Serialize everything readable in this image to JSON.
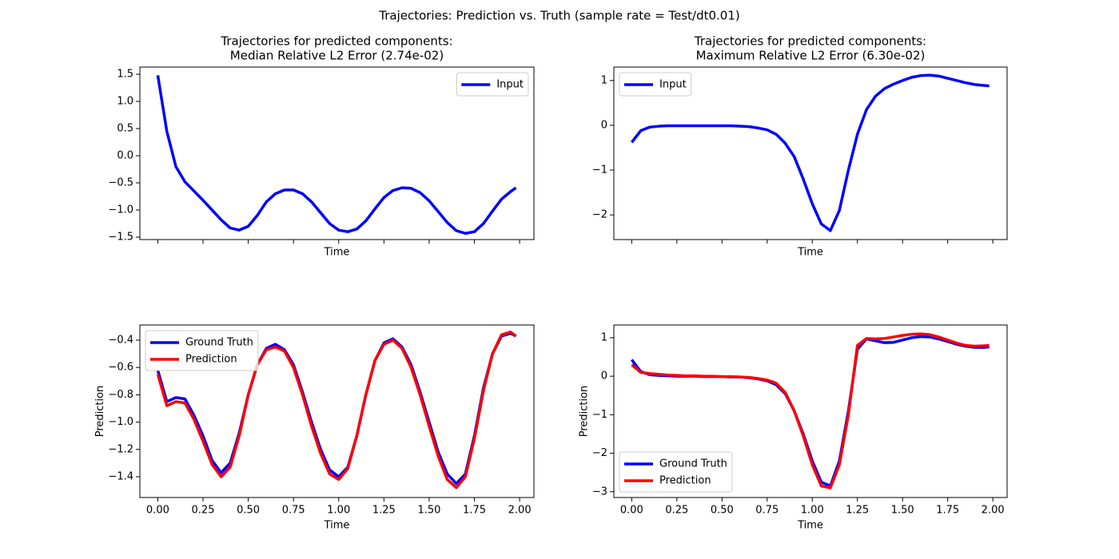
{
  "title": "Trajectories: Prediction vs. Truth (sample rate = Test/dt0.01)",
  "chart_data": [
    {
      "type": "line",
      "title": [
        "Trajectories for predicted components:",
        "Median Relative L2 Error (2.74e-02)"
      ],
      "x_label": "Time",
      "legend": "upper right",
      "xtick_labels": false,
      "x": [
        0,
        0.05,
        0.1,
        0.15,
        0.2,
        0.25,
        0.3,
        0.35,
        0.4,
        0.45,
        0.5,
        0.55,
        0.6,
        0.65,
        0.7,
        0.75,
        0.8,
        0.85,
        0.9,
        0.95,
        1.0,
        1.05,
        1.1,
        1.15,
        1.2,
        1.25,
        1.3,
        1.35,
        1.4,
        1.45,
        1.5,
        1.55,
        1.6,
        1.65,
        1.7,
        1.75,
        1.8,
        1.85,
        1.9,
        1.95,
        1.98
      ],
      "series": [
        {
          "name": "Input",
          "color": "#0000ff",
          "values": [
            1.48,
            0.45,
            -0.2,
            -0.48,
            -0.65,
            -0.82,
            -1.0,
            -1.18,
            -1.33,
            -1.37,
            -1.3,
            -1.1,
            -0.85,
            -0.7,
            -0.63,
            -0.63,
            -0.7,
            -0.85,
            -1.05,
            -1.25,
            -1.37,
            -1.4,
            -1.35,
            -1.2,
            -0.98,
            -0.77,
            -0.64,
            -0.59,
            -0.6,
            -0.68,
            -0.83,
            -1.03,
            -1.23,
            -1.38,
            -1.43,
            -1.4,
            -1.25,
            -1.02,
            -0.8,
            -0.66,
            -0.59
          ]
        }
      ],
      "xlim": [
        -0.099,
        2.079
      ],
      "xticks": [
        0,
        0.25,
        0.5,
        0.75,
        1,
        1.25,
        1.5,
        1.75,
        2
      ],
      "ylim": [
        -1.544,
        1.632
      ],
      "yticks": [
        {
          "value": -1.5,
          "label": "−1.5"
        },
        {
          "value": -1.0,
          "label": "−1.0"
        },
        {
          "value": -0.5,
          "label": "−0.5"
        },
        {
          "value": 0,
          "label": "0.0"
        },
        0.5,
        {
          "value": 1,
          "label": "1.0"
        },
        1.5
      ]
    },
    {
      "type": "line",
      "title": [
        "Trajectories for predicted components:",
        "Maximum Relative L2 Error (6.30e-02)"
      ],
      "x_label": "Time",
      "legend": "upper left",
      "xtick_labels": false,
      "x": [
        0,
        0.05,
        0.1,
        0.15,
        0.2,
        0.25,
        0.3,
        0.35,
        0.4,
        0.45,
        0.5,
        0.55,
        0.6,
        0.65,
        0.7,
        0.75,
        0.8,
        0.85,
        0.9,
        0.95,
        1.0,
        1.05,
        1.1,
        1.15,
        1.2,
        1.25,
        1.3,
        1.35,
        1.4,
        1.45,
        1.5,
        1.55,
        1.6,
        1.65,
        1.7,
        1.75,
        1.8,
        1.85,
        1.9,
        1.95,
        1.98
      ],
      "series": [
        {
          "name": "Input",
          "color": "#0000ff",
          "values": [
            -0.38,
            -0.12,
            -0.04,
            -0.02,
            -0.01,
            -0.01,
            -0.01,
            -0.01,
            -0.01,
            -0.01,
            -0.01,
            -0.01,
            -0.02,
            -0.03,
            -0.06,
            -0.1,
            -0.2,
            -0.4,
            -0.7,
            -1.2,
            -1.75,
            -2.2,
            -2.35,
            -1.9,
            -1.0,
            -0.2,
            0.35,
            0.65,
            0.82,
            0.92,
            1.0,
            1.07,
            1.11,
            1.12,
            1.1,
            1.05,
            1.0,
            0.95,
            0.91,
            0.89,
            0.88
          ]
        }
      ],
      "xlim": [
        -0.099,
        2.079
      ],
      "xticks": [
        0,
        0.25,
        0.5,
        0.75,
        1,
        1.25,
        1.5,
        1.75,
        2
      ],
      "ylim": [
        -2.55,
        1.3
      ],
      "yticks": [
        {
          "value": -2,
          "label": "−2"
        },
        {
          "value": -1,
          "label": "−1"
        },
        0,
        1
      ]
    },
    {
      "type": "line",
      "x_label": "Time",
      "y_label": "Prediction",
      "legend": "upper left",
      "x": [
        0,
        0.05,
        0.1,
        0.15,
        0.2,
        0.25,
        0.3,
        0.35,
        0.4,
        0.45,
        0.5,
        0.55,
        0.6,
        0.65,
        0.7,
        0.75,
        0.8,
        0.85,
        0.9,
        0.95,
        1.0,
        1.05,
        1.1,
        1.15,
        1.2,
        1.25,
        1.3,
        1.35,
        1.4,
        1.45,
        1.5,
        1.55,
        1.6,
        1.65,
        1.7,
        1.75,
        1.8,
        1.85,
        1.9,
        1.95,
        1.98
      ],
      "series": [
        {
          "name": "Ground Truth",
          "color": "#0000ff",
          "values": [
            -0.62,
            -0.85,
            -0.82,
            -0.83,
            -0.95,
            -1.1,
            -1.28,
            -1.37,
            -1.3,
            -1.08,
            -0.8,
            -0.58,
            -0.46,
            -0.43,
            -0.47,
            -0.58,
            -0.78,
            -1.0,
            -1.2,
            -1.35,
            -1.4,
            -1.33,
            -1.1,
            -0.8,
            -0.55,
            -0.42,
            -0.39,
            -0.45,
            -0.58,
            -0.78,
            -1.0,
            -1.22,
            -1.38,
            -1.45,
            -1.38,
            -1.1,
            -0.75,
            -0.5,
            -0.37,
            -0.35,
            -0.37
          ]
        },
        {
          "name": "Prediction",
          "color": "#ff0000",
          "values": [
            -0.65,
            -0.88,
            -0.85,
            -0.86,
            -0.98,
            -1.14,
            -1.31,
            -1.4,
            -1.33,
            -1.1,
            -0.8,
            -0.58,
            -0.47,
            -0.45,
            -0.48,
            -0.6,
            -0.8,
            -1.03,
            -1.23,
            -1.38,
            -1.42,
            -1.34,
            -1.1,
            -0.8,
            -0.55,
            -0.43,
            -0.4,
            -0.46,
            -0.6,
            -0.8,
            -1.03,
            -1.25,
            -1.42,
            -1.48,
            -1.4,
            -1.12,
            -0.77,
            -0.5,
            -0.36,
            -0.34,
            -0.37
          ]
        }
      ],
      "xlim": [
        -0.099,
        2.079
      ],
      "xticks": [
        {
          "value": 0,
          "label": "0.00"
        },
        0.25,
        {
          "value": 0.5,
          "label": "0.50"
        },
        0.75,
        {
          "value": 1,
          "label": "1.00"
        },
        1.25,
        {
          "value": 1.5,
          "label": "1.50"
        },
        1.75,
        {
          "value": 2,
          "label": "2.00"
        }
      ],
      "ylim": [
        -1.552,
        -0.289
      ],
      "yticks": [
        {
          "value": -1.4,
          "label": "−1.4"
        },
        {
          "value": -1.2,
          "label": "−1.2"
        },
        {
          "value": -1.0,
          "label": "−1.0"
        },
        {
          "value": -0.8,
          "label": "−0.8"
        },
        {
          "value": -0.6,
          "label": "−0.6"
        },
        {
          "value": -0.4,
          "label": "−0.4"
        }
      ]
    },
    {
      "type": "line",
      "x_label": "Time",
      "y_label": "Prediction",
      "legend": "lower left",
      "x": [
        0,
        0.05,
        0.1,
        0.15,
        0.2,
        0.25,
        0.3,
        0.35,
        0.4,
        0.45,
        0.5,
        0.55,
        0.6,
        0.65,
        0.7,
        0.75,
        0.8,
        0.85,
        0.9,
        0.95,
        1.0,
        1.05,
        1.1,
        1.15,
        1.2,
        1.25,
        1.3,
        1.35,
        1.4,
        1.45,
        1.5,
        1.55,
        1.6,
        1.65,
        1.7,
        1.75,
        1.8,
        1.85,
        1.9,
        1.95,
        1.98
      ],
      "series": [
        {
          "name": "Ground Truth",
          "color": "#0000ff",
          "values": [
            0.43,
            0.12,
            0.04,
            0.02,
            0.01,
            0.0,
            0.0,
            0.0,
            -0.01,
            -0.01,
            -0.01,
            -0.02,
            -0.02,
            -0.04,
            -0.07,
            -0.12,
            -0.22,
            -0.45,
            -0.9,
            -1.5,
            -2.2,
            -2.75,
            -2.85,
            -2.2,
            -0.9,
            0.7,
            0.97,
            0.92,
            0.87,
            0.88,
            0.94,
            1.0,
            1.03,
            1.02,
            0.97,
            0.9,
            0.83,
            0.78,
            0.75,
            0.75,
            0.76
          ]
        },
        {
          "name": "Prediction",
          "color": "#ff0000",
          "values": [
            0.3,
            0.1,
            0.07,
            0.05,
            0.03,
            0.02,
            0.01,
            0.01,
            0.0,
            0.0,
            -0.01,
            -0.01,
            -0.02,
            -0.03,
            -0.06,
            -0.1,
            -0.18,
            -0.42,
            -0.9,
            -1.55,
            -2.3,
            -2.85,
            -2.9,
            -2.3,
            -1.0,
            0.8,
            0.98,
            0.97,
            0.98,
            1.02,
            1.06,
            1.09,
            1.1,
            1.08,
            1.02,
            0.94,
            0.86,
            0.8,
            0.78,
            0.79,
            0.8
          ]
        }
      ],
      "xlim": [
        -0.099,
        2.079
      ],
      "xticks": [
        {
          "value": 0,
          "label": "0.00"
        },
        0.25,
        {
          "value": 0.5,
          "label": "0.50"
        },
        0.75,
        {
          "value": 1,
          "label": "1.00"
        },
        1.25,
        {
          "value": 1.5,
          "label": "1.50"
        },
        1.75,
        {
          "value": 2,
          "label": "2.00"
        }
      ],
      "ylim": [
        -3.15,
        1.33
      ],
      "yticks": [
        {
          "value": -3,
          "label": "−3"
        },
        {
          "value": -2,
          "label": "−2"
        },
        {
          "value": -1,
          "label": "−1"
        },
        0,
        1
      ]
    }
  ]
}
